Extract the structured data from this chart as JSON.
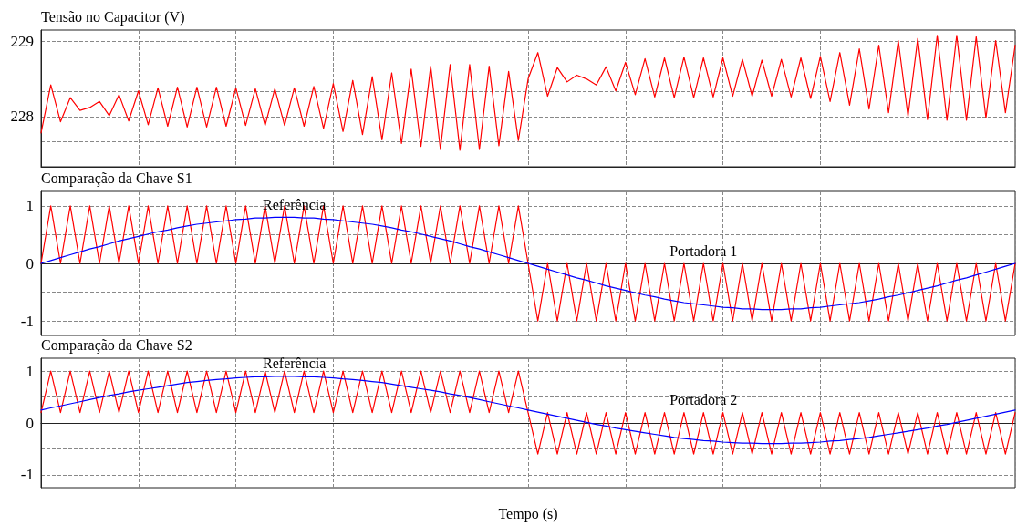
{
  "chart_data": [
    {
      "type": "line",
      "title": "Tensão no Capacitor (V)",
      "categories": [
        null,
        null,
        null,
        null,
        null,
        null,
        null,
        null,
        null,
        null,
        null,
        null,
        null,
        null,
        null,
        null,
        null,
        null,
        null,
        null,
        null,
        null,
        null,
        null,
        null,
        null,
        null,
        null,
        null,
        null,
        null,
        null,
        null,
        null,
        null,
        null,
        null,
        null,
        null,
        null,
        null,
        null,
        null,
        null,
        null,
        null,
        null,
        null,
        null,
        null,
        null,
        null,
        null,
        null,
        null,
        null,
        null,
        null,
        null,
        null,
        null,
        null,
        null,
        null,
        null,
        null,
        null,
        null,
        null,
        null,
        null,
        null,
        null,
        null,
        null,
        null,
        null,
        null,
        null,
        null,
        null,
        null,
        null,
        null,
        null,
        null,
        null,
        null,
        null,
        null,
        null,
        null,
        null,
        null,
        null,
        null,
        null,
        null,
        null,
        null,
        null
      ],
      "series": [
        {
          "color": "#ff0000",
          "values": [
            227.78,
            228.42,
            227.93,
            228.25,
            228.08,
            228.12,
            228.2,
            228.01,
            228.29,
            227.94,
            228.34,
            227.89,
            228.38,
            227.87,
            228.39,
            227.86,
            228.39,
            227.86,
            228.39,
            227.87,
            228.38,
            227.88,
            228.37,
            227.88,
            228.37,
            227.88,
            228.38,
            227.87,
            228.4,
            227.84,
            228.44,
            227.8,
            228.48,
            227.76,
            228.53,
            227.69,
            228.58,
            227.64,
            228.63,
            227.6,
            228.67,
            227.56,
            228.69,
            227.55,
            228.69,
            227.56,
            228.67,
            227.61,
            228.6,
            227.68,
            228.5,
            228.85,
            228.27,
            228.65,
            228.46,
            228.55,
            228.5,
            228.42,
            228.66,
            228.34,
            228.72,
            228.29,
            228.77,
            228.26,
            228.78,
            228.25,
            228.79,
            228.25,
            228.78,
            228.26,
            228.78,
            228.27,
            228.76,
            228.27,
            228.75,
            228.27,
            228.76,
            228.26,
            228.78,
            228.24,
            228.8,
            228.2,
            228.85,
            228.15,
            228.9,
            228.1,
            228.95,
            228.05,
            229.01,
            228.0,
            229.04,
            227.96,
            229.08,
            227.95,
            229.08,
            227.95,
            229.06,
            227.98,
            229.01,
            228.05,
            228.95
          ]
        }
      ],
      "ylim": [
        227.33,
        229.15
      ],
      "yticks": [
        {
          "value": 227.667,
          "label": null
        },
        228,
        {
          "value": 228.333,
          "label": null
        },
        {
          "value": 228.667,
          "label": null
        },
        229
      ],
      "grid": true,
      "tick_labels": "y",
      "marker": "none",
      "line_style": "solid"
    },
    {
      "type": "line",
      "title": "Comparação da Chave S1",
      "categories": [
        null,
        null,
        null,
        null,
        null,
        null,
        null,
        null,
        null,
        null,
        null,
        null,
        null,
        null,
        null,
        null,
        null,
        null,
        null,
        null,
        null,
        null,
        null,
        null,
        null,
        null,
        null,
        null,
        null,
        null,
        null,
        null,
        null,
        null,
        null,
        null,
        null,
        null,
        null,
        null,
        null,
        null,
        null,
        null,
        null,
        null,
        null,
        null,
        null,
        null,
        null,
        null,
        null,
        null,
        null,
        null,
        null,
        null,
        null,
        null,
        null,
        null,
        null,
        null,
        null,
        null,
        null,
        null,
        null,
        null,
        null,
        null,
        null,
        null,
        null,
        null,
        null,
        null,
        null,
        null,
        null,
        null,
        null,
        null,
        null,
        null,
        null,
        null,
        null,
        null,
        null,
        null,
        null,
        null,
        null,
        null,
        null,
        null,
        null,
        null,
        null
      ],
      "series": [
        {
          "name": "Portadora 1",
          "color": "#ff0000",
          "values": [
            0,
            1,
            0,
            1,
            0,
            1,
            0,
            1,
            0,
            1,
            0,
            1,
            0,
            1,
            0,
            1,
            0,
            1,
            0,
            1,
            0,
            1,
            0,
            1,
            0,
            1,
            0,
            1,
            0,
            1,
            0,
            1,
            0,
            1,
            0,
            1,
            0,
            1,
            0,
            1,
            0,
            1,
            0,
            1,
            0,
            1,
            0,
            1,
            0,
            1,
            0,
            -1,
            0,
            -1,
            0,
            -1,
            0,
            -1,
            0,
            -1,
            0,
            -1,
            0,
            -1,
            0,
            -1,
            0,
            -1,
            0,
            -1,
            0,
            -1,
            0,
            -1,
            0,
            -1,
            0,
            -1,
            0,
            -1,
            0,
            -1,
            0,
            -1,
            0,
            -1,
            0,
            -1,
            0,
            -1,
            0,
            -1,
            0,
            -1,
            0,
            -1,
            0,
            -1,
            0,
            -1,
            0
          ]
        },
        {
          "name": "Referência",
          "color": "#0000ff",
          "values": [
            0,
            0.05,
            0.1,
            0.15,
            0.2,
            0.25,
            0.29,
            0.34,
            0.39,
            0.43,
            0.47,
            0.51,
            0.55,
            0.58,
            0.62,
            0.65,
            0.68,
            0.7,
            0.72,
            0.74,
            0.76,
            0.77,
            0.79,
            0.79,
            0.8,
            0.8,
            0.8,
            0.79,
            0.79,
            0.77,
            0.76,
            0.74,
            0.72,
            0.7,
            0.68,
            0.65,
            0.62,
            0.58,
            0.55,
            0.51,
            0.47,
            0.43,
            0.39,
            0.34,
            0.29,
            0.25,
            0.2,
            0.15,
            0.1,
            0.05,
            0,
            -0.05,
            -0.1,
            -0.15,
            -0.2,
            -0.25,
            -0.29,
            -0.34,
            -0.39,
            -0.43,
            -0.47,
            -0.51,
            -0.55,
            -0.58,
            -0.62,
            -0.65,
            -0.68,
            -0.7,
            -0.72,
            -0.74,
            -0.76,
            -0.77,
            -0.79,
            -0.79,
            -0.8,
            -0.8,
            -0.8,
            -0.79,
            -0.79,
            -0.77,
            -0.76,
            -0.74,
            -0.72,
            -0.7,
            -0.68,
            -0.65,
            -0.62,
            -0.58,
            -0.55,
            -0.51,
            -0.47,
            -0.43,
            -0.39,
            -0.34,
            -0.29,
            -0.25,
            -0.2,
            -0.15,
            -0.1,
            -0.05,
            0
          ]
        }
      ],
      "ylim": [
        -1.25,
        1.25
      ],
      "yticks": [
        -1,
        {
          "value": -0.5,
          "label": null
        },
        0,
        {
          "value": 0.5,
          "label": null
        },
        1
      ],
      "grid": true,
      "tick_labels": "y",
      "marker": "none",
      "line_style": "solid"
    },
    {
      "type": "line",
      "title": "Comparação da Chave S2",
      "xlabel": "Tempo (s)",
      "categories": [
        null,
        null,
        null,
        null,
        null,
        null,
        null,
        null,
        null,
        null,
        null,
        null,
        null,
        null,
        null,
        null,
        null,
        null,
        null,
        null,
        null,
        null,
        null,
        null,
        null,
        null,
        null,
        null,
        null,
        null,
        null,
        null,
        null,
        null,
        null,
        null,
        null,
        null,
        null,
        null,
        null,
        null,
        null,
        null,
        null,
        null,
        null,
        null,
        null,
        null,
        null,
        null,
        null,
        null,
        null,
        null,
        null,
        null,
        null,
        null,
        null,
        null,
        null,
        null,
        null,
        null,
        null,
        null,
        null,
        null,
        null,
        null,
        null,
        null,
        null,
        null,
        null,
        null,
        null,
        null,
        null,
        null,
        null,
        null,
        null,
        null,
        null,
        null,
        null,
        null,
        null,
        null,
        null,
        null,
        null,
        null,
        null,
        null,
        null,
        null,
        null
      ],
      "series": [
        {
          "name": "Portadora 2",
          "color": "#ff0000",
          "values": [
            0.2,
            1,
            0.2,
            1,
            0.2,
            1,
            0.2,
            1,
            0.2,
            1,
            0.2,
            1,
            0.2,
            1,
            0.2,
            1,
            0.2,
            1,
            0.2,
            1,
            0.2,
            1,
            0.2,
            1,
            0.2,
            1,
            0.2,
            1,
            0.2,
            1,
            0.2,
            1,
            0.2,
            1,
            0.2,
            1,
            0.2,
            1,
            0.2,
            1,
            0.2,
            1,
            0.2,
            1,
            0.2,
            1,
            0.2,
            1,
            0.2,
            1,
            0.2,
            -0.6,
            0.2,
            -0.6,
            0.2,
            -0.6,
            0.2,
            -0.6,
            0.2,
            -0.6,
            0.2,
            -0.6,
            0.2,
            -0.6,
            0.2,
            -0.6,
            0.2,
            -0.6,
            0.2,
            -0.6,
            0.2,
            -0.6,
            0.2,
            -0.6,
            0.2,
            -0.6,
            0.2,
            -0.6,
            0.2,
            -0.6,
            0.2,
            -0.6,
            0.2,
            -0.6,
            0.2,
            -0.6,
            0.2,
            -0.6,
            0.2,
            -0.6,
            0.2,
            -0.6,
            0.2,
            -0.6,
            0.2,
            -0.6,
            0.2,
            -0.6,
            0.2,
            -0.6,
            0.2
          ]
        },
        {
          "name": "Referência",
          "color": "#0000ff",
          "values": [
            0.25,
            0.29,
            0.33,
            0.37,
            0.41,
            0.45,
            0.49,
            0.53,
            0.56,
            0.6,
            0.63,
            0.66,
            0.69,
            0.72,
            0.75,
            0.78,
            0.8,
            0.82,
            0.84,
            0.85,
            0.87,
            0.88,
            0.89,
            0.89,
            0.9,
            0.9,
            0.9,
            0.89,
            0.89,
            0.88,
            0.87,
            0.85,
            0.84,
            0.82,
            0.8,
            0.78,
            0.75,
            0.72,
            0.69,
            0.66,
            0.63,
            0.6,
            0.56,
            0.53,
            0.49,
            0.45,
            0.41,
            0.37,
            0.33,
            0.29,
            0.25,
            0.21,
            0.17,
            0.13,
            0.09,
            0.05,
            0.01,
            -0.03,
            -0.06,
            -0.1,
            -0.13,
            -0.16,
            -0.19,
            -0.22,
            -0.25,
            -0.28,
            -0.3,
            -0.32,
            -0.34,
            -0.35,
            -0.37,
            -0.38,
            -0.39,
            -0.39,
            -0.4,
            -0.4,
            -0.4,
            -0.39,
            -0.39,
            -0.38,
            -0.37,
            -0.35,
            -0.34,
            -0.32,
            -0.3,
            -0.28,
            -0.25,
            -0.22,
            -0.19,
            -0.16,
            -0.13,
            -0.1,
            -0.06,
            -0.03,
            0.01,
            0.05,
            0.09,
            0.13,
            0.17,
            0.21,
            0.25
          ]
        }
      ],
      "ylim": [
        -1.25,
        1.25
      ],
      "yticks": [
        -1,
        {
          "value": -0.5,
          "label": null
        },
        0,
        {
          "value": 0.5,
          "label": null
        },
        1
      ],
      "grid": true,
      "tick_labels": "y",
      "marker": "none",
      "line_style": "solid"
    }
  ]
}
